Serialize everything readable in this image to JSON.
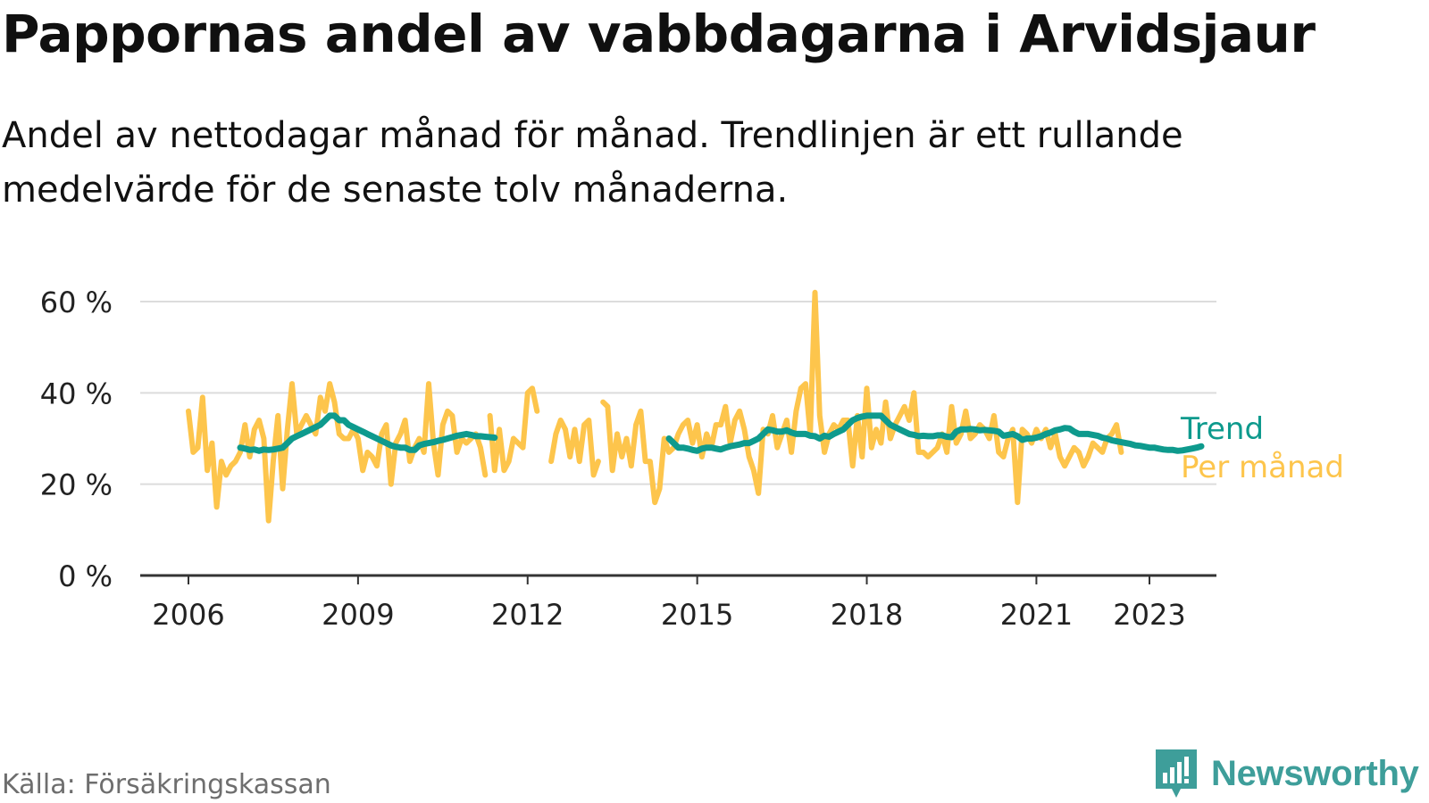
{
  "title": "Pappornas andel av vabbdagarna i Arvidsjaur",
  "subtitle": "Andel av nettodagar månad för månad. Trendlinjen är ett rullande medelvärde för de senaste tolv månaderna.",
  "source": "Källa: Försäkringskassan",
  "brand": {
    "name": "Newsworthy",
    "icon": "newsworthy-logo-icon",
    "color": "#3e9e9a"
  },
  "colors": {
    "trend": "#0e9a8d",
    "monthly": "#fdc54c",
    "grid": "#dcdcdc",
    "axis": "#333333",
    "text": "#222222"
  },
  "chart_data": {
    "type": "line",
    "x_ticks": [
      2006,
      2009,
      2012,
      2015,
      2018,
      2021,
      2023
    ],
    "y_ticks": [
      0,
      20,
      40,
      60
    ],
    "y_tick_labels": [
      "0 %",
      "20 %",
      "40 %",
      "60 %"
    ],
    "ylim": [
      0,
      60
    ],
    "grid": true,
    "legend_placement": "right, at line ends",
    "series": [
      {
        "name": "Per månad",
        "color": "#fdc54c",
        "segments": [
          {
            "start": "2006-01",
            "step": "month",
            "values": [
              36,
              27,
              28,
              39,
              23,
              29,
              15,
              25,
              22,
              24,
              25,
              27,
              33,
              26,
              32,
              34,
              30,
              12,
              25,
              35,
              19,
              32,
              42,
              31,
              33,
              35,
              33,
              31,
              39,
              36,
              42,
              38,
              31,
              30,
              30,
              32,
              30,
              23,
              27,
              26,
              24,
              31,
              33,
              20,
              29,
              31,
              34,
              25,
              28,
              30,
              27,
              42,
              29,
              22,
              33,
              36,
              35,
              27,
              30,
              29,
              30,
              31,
              28,
              22
            ]
          },
          {
            "start": "2011-05",
            "step": "month",
            "values": [
              35,
              23,
              32,
              23,
              25,
              30,
              29,
              28,
              40,
              41,
              36
            ]
          },
          {
            "start": "2012-06",
            "step": "month",
            "values": [
              25,
              31,
              34,
              32,
              26,
              32,
              25,
              33,
              34,
              22,
              25
            ]
          },
          {
            "start": "2013-05",
            "step": "month",
            "values": [
              38,
              37,
              23,
              31,
              26,
              30,
              24,
              33,
              36,
              25,
              25,
              16,
              19,
              30,
              27,
              28,
              31,
              33,
              34,
              29,
              33,
              26,
              31,
              28,
              33,
              33,
              37,
              29,
              34,
              36,
              32,
              26,
              23,
              18,
              32,
              31,
              35,
              28,
              31,
              34,
              27,
              36,
              41,
              42,
              31,
              62,
              35,
              27,
              31,
              33,
              32,
              34,
              34,
              24,
              35,
              26,
              41,
              28,
              32,
              29,
              38,
              30,
              33,
              35,
              37,
              34,
              40,
              27,
              27,
              26,
              27,
              28,
              31,
              27,
              37,
              29,
              31,
              36,
              30,
              31,
              33,
              32,
              30,
              35,
              27,
              26,
              30,
              32,
              16,
              32,
              31,
              29,
              32,
              30,
              32,
              28,
              31,
              26,
              24,
              26,
              28,
              27,
              24,
              26,
              29,
              28,
              27,
              30,
              31,
              33,
              27
            ]
          }
        ]
      },
      {
        "name": "Trend",
        "color": "#0e9a8d",
        "segments": [
          {
            "start": "2006-12",
            "step": "month",
            "values": [
              28,
              27.8,
              27.5,
              27.6,
              27.3,
              27.6,
              27.5,
              27.6,
              27.8,
              28,
              29,
              30,
              30.5,
              31,
              31.5,
              32,
              32.5,
              33,
              34,
              35,
              35,
              34,
              34,
              33,
              32.5,
              32,
              31.5,
              31,
              30.5,
              30,
              29.5,
              29,
              28.5,
              28.2,
              28,
              28,
              27.5,
              27.5,
              28.5,
              28.8,
              29,
              29.2,
              29.5,
              29.7,
              30,
              30.3,
              30.6,
              30.8,
              31,
              30.8,
              30.5,
              30.5,
              30.4,
              30.3,
              30.2
            ]
          },
          {
            "start": "2014-07",
            "step": "month",
            "values": [
              30,
              29,
              28,
              28,
              27.8,
              27.5,
              27.3,
              27.8,
              28,
              28,
              27.8,
              27.6,
              28,
              28.3,
              28.5,
              28.7,
              29,
              29,
              29.5,
              30,
              31,
              32,
              31.8,
              31.5,
              31.5,
              31.8,
              31.3,
              31,
              31,
              31,
              30.6,
              30.5,
              30,
              30.6,
              30.4,
              31,
              31.5,
              32,
              33,
              34,
              34.5,
              34.8,
              35,
              35,
              35,
              35,
              34,
              33,
              32.5,
              32,
              31.5,
              31,
              30.8,
              30.5,
              30.6,
              30.5,
              30.5,
              30.7,
              30.7,
              30.4,
              30.3,
              31.5,
              32,
              32,
              32.1,
              32,
              31.8,
              31.9,
              31.8,
              31.7,
              31.5,
              30.6,
              30.8,
              31,
              30.5,
              29.7,
              30,
              30,
              30.2,
              30.5,
              31,
              31.3,
              31.8,
              32,
              32.3,
              32.2,
              31.5,
              31,
              31,
              31,
              30.8,
              30.6,
              30.2,
              30,
              29.6,
              29.4,
              29.2,
              29,
              28.8,
              28.5,
              28.4,
              28.2,
              28,
              28,
              27.8,
              27.6,
              27.5,
              27.5,
              27.3,
              27.4,
              27.6,
              27.8,
              28,
              28.3
            ]
          }
        ]
      }
    ]
  }
}
